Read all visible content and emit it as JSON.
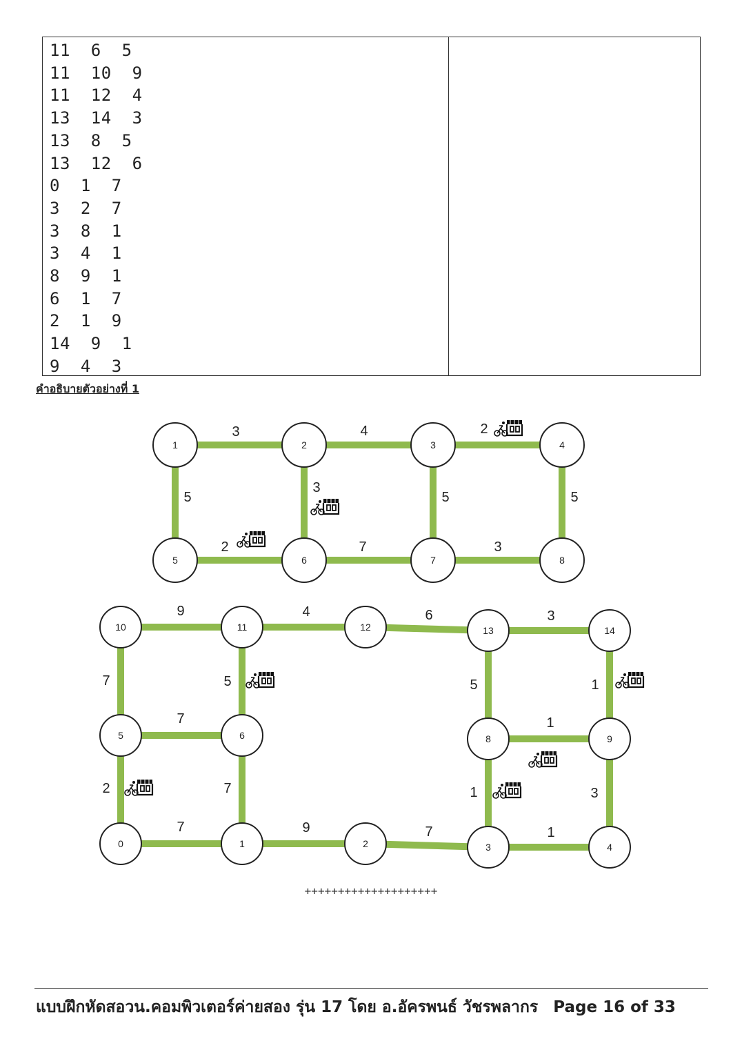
{
  "sample_input_lines": [
    "11  6  5",
    "11  10  9",
    "11  12  4",
    "13  14  3",
    "13  8  5",
    "13  12  6",
    "0  1  7",
    "3  2  7",
    "3  8  1",
    "3  4  1",
    "8  9  1",
    "6  1  7",
    "2  1  9",
    "14  9  1",
    "9  4  3"
  ],
  "caption": "คำอธิบายตัวอย่างที่ 1",
  "graph_top": {
    "nodes": [
      {
        "id": "1",
        "label": "1"
      },
      {
        "id": "2",
        "label": "2"
      },
      {
        "id": "3",
        "label": "3"
      },
      {
        "id": "4",
        "label": "4"
      },
      {
        "id": "5",
        "label": "5"
      },
      {
        "id": "6",
        "label": "6"
      },
      {
        "id": "7",
        "label": "7"
      },
      {
        "id": "8",
        "label": "8"
      }
    ],
    "edges": [
      {
        "from": "1",
        "to": "2",
        "weight": "3",
        "shop": false
      },
      {
        "from": "2",
        "to": "3",
        "weight": "4",
        "shop": false
      },
      {
        "from": "3",
        "to": "4",
        "weight": "2",
        "shop": true
      },
      {
        "from": "1",
        "to": "5",
        "weight": "5",
        "shop": false
      },
      {
        "from": "2",
        "to": "6",
        "weight": "3",
        "shop": true
      },
      {
        "from": "3",
        "to": "7",
        "weight": "5",
        "shop": false
      },
      {
        "from": "4",
        "to": "8",
        "weight": "5",
        "shop": false
      },
      {
        "from": "5",
        "to": "6",
        "weight": "2",
        "shop": true
      },
      {
        "from": "6",
        "to": "7",
        "weight": "7",
        "shop": false
      },
      {
        "from": "7",
        "to": "8",
        "weight": "3",
        "shop": false
      }
    ]
  },
  "graph_bottom": {
    "nodes": [
      {
        "id": "0",
        "label": "0"
      },
      {
        "id": "1",
        "label": "1"
      },
      {
        "id": "2",
        "label": "2"
      },
      {
        "id": "3",
        "label": "3"
      },
      {
        "id": "4",
        "label": "4"
      },
      {
        "id": "5",
        "label": "5"
      },
      {
        "id": "6",
        "label": "6"
      },
      {
        "id": "8",
        "label": "8"
      },
      {
        "id": "9",
        "label": "9"
      },
      {
        "id": "10",
        "label": "10"
      },
      {
        "id": "11",
        "label": "11"
      },
      {
        "id": "12",
        "label": "12"
      },
      {
        "id": "13",
        "label": "13"
      },
      {
        "id": "14",
        "label": "14"
      }
    ],
    "edges": [
      {
        "from": "10",
        "to": "11",
        "weight": "9",
        "shop": false
      },
      {
        "from": "11",
        "to": "12",
        "weight": "4",
        "shop": false
      },
      {
        "from": "12",
        "to": "13",
        "weight": "6",
        "shop": false
      },
      {
        "from": "13",
        "to": "14",
        "weight": "3",
        "shop": false
      },
      {
        "from": "10",
        "to": "5",
        "weight": "7",
        "shop": false
      },
      {
        "from": "11",
        "to": "6",
        "weight": "5",
        "shop": true
      },
      {
        "from": "13",
        "to": "8",
        "weight": "5",
        "shop": false
      },
      {
        "from": "14",
        "to": "9",
        "weight": "1",
        "shop": true
      },
      {
        "from": "5",
        "to": "6",
        "weight": "7",
        "shop": false
      },
      {
        "from": "8",
        "to": "9",
        "weight": "1",
        "shop": true
      },
      {
        "from": "5",
        "to": "0",
        "weight": "2",
        "shop": true
      },
      {
        "from": "6",
        "to": "1",
        "weight": "7",
        "shop": false
      },
      {
        "from": "8",
        "to": "3",
        "weight": "1",
        "shop": true
      },
      {
        "from": "9",
        "to": "4",
        "weight": "3",
        "shop": false
      },
      {
        "from": "0",
        "to": "1",
        "weight": "7",
        "shop": false
      },
      {
        "from": "1",
        "to": "2",
        "weight": "9",
        "shop": false
      },
      {
        "from": "2",
        "to": "3",
        "weight": "7",
        "shop": false
      },
      {
        "from": "3",
        "to": "4",
        "weight": "1",
        "shop": false
      }
    ]
  },
  "icons": {
    "shop": "bike-shop-icon"
  },
  "colors": {
    "edge": "#8fba4e"
  },
  "separator": "++++++++++++++++++++",
  "footer": {
    "text": "แบบฝึกหัดสอวน.คอมพิวเตอร์ค่ายสอง รุ่น 17 โดย อ.อัครพนธ์ วัชรพลากร",
    "page": "Page 16 of 33"
  }
}
